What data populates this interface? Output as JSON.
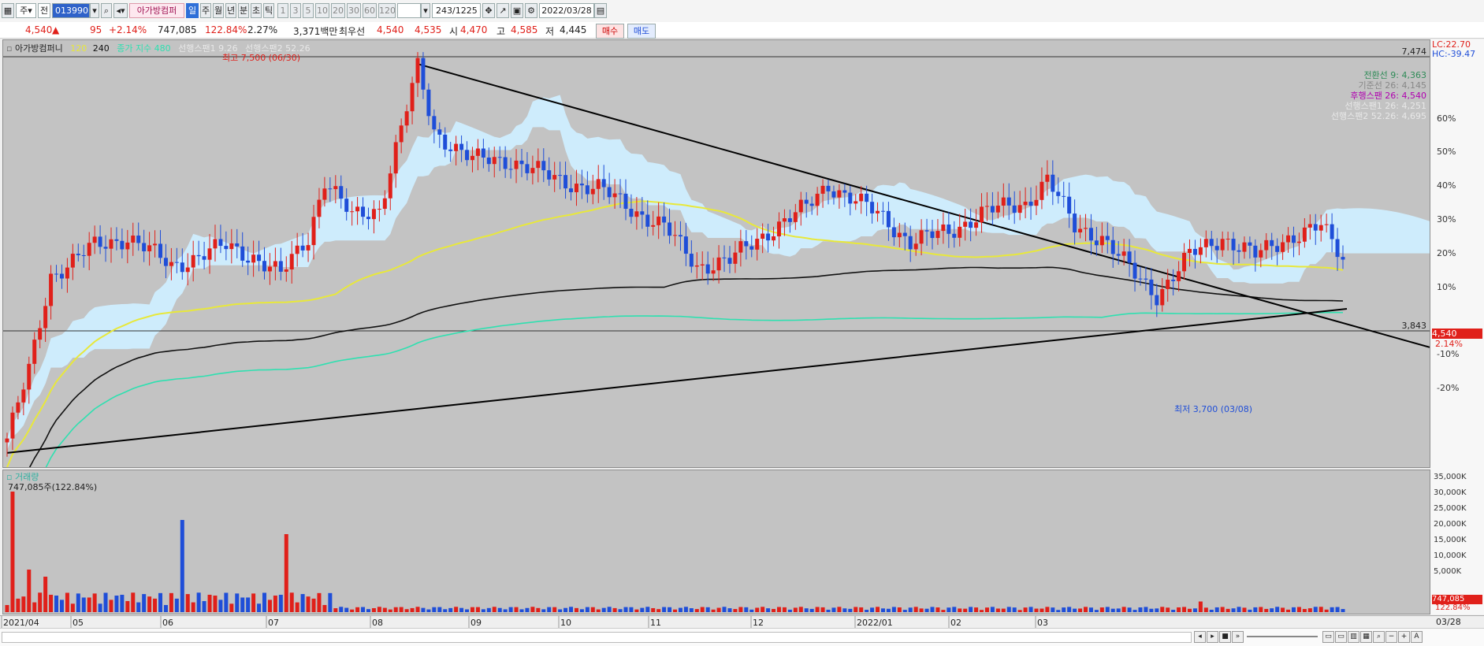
{
  "toolbar": {
    "period_label": "주",
    "mode_label": "전",
    "stock_code": "013990",
    "stock_name": "아가방컴퍼",
    "timeframes": [
      "일",
      "주",
      "월",
      "년",
      "분",
      "초",
      "틱"
    ],
    "active_timeframe": "일",
    "intervals": [
      "1",
      "3",
      "5",
      "10",
      "20",
      "30",
      "60",
      "120"
    ],
    "bar_count": "243",
    "total_count": "/1225",
    "date": "2022/03/28"
  },
  "quote": {
    "price": "4,540",
    "change": "95",
    "change_pct": "+2.14%",
    "volume": "747,085",
    "volume_ratio": "122.84%",
    "turnover": "2.27%",
    "amount": "3,371백만",
    "best_label": "최우선",
    "best_ask": "4,540",
    "best_bid": "4,535",
    "open_label": "시",
    "open": "4,470",
    "high_label": "고",
    "high": "4,585",
    "low_label": "저",
    "low": "4,445",
    "buy_label": "매수",
    "sell_label": "매도"
  },
  "legend": {
    "name": "아가방컴퍼니",
    "ma1": "120",
    "ma2": "240",
    "ichimoku": "종가 지수 480",
    "span1": "선행스팬1 9.26",
    "span2": "선행스팬2 52.26"
  },
  "ichimoku_info": [
    {
      "label": "전환선 9: 4,363",
      "color": "#2e8b57"
    },
    {
      "label": "기준선 26: 4,145",
      "color": "#888888"
    },
    {
      "label": "후행스팬 26: 4,540",
      "color": "#b000b0"
    },
    {
      "label": "선행스팬1 26: 4,251",
      "color": "#e8e8e8"
    },
    {
      "label": "선행스팬2 52.26: 4,695",
      "color": "#e8e8e8"
    }
  ],
  "annotations": {
    "high_label": "최고 7,500 (06/30)",
    "low_label": "최저 3,700 (03/08)",
    "ref_high": "7,474",
    "ref_low": "3,843",
    "lc": "LC:22.70",
    "hc": "HC:-39.47",
    "last_price": "4,540",
    "last_pct": "2.14%"
  },
  "volume_panel": {
    "title": "거래량",
    "current": "747,085주(122.84%)",
    "last_value": "747,085",
    "last_pct": "122.84%"
  },
  "bottom": {
    "corner_date": "03/28"
  },
  "colors": {
    "up": "#e0201a",
    "down": "#1f4ed8",
    "ma120": "#e8e83a",
    "ma240": "#111111",
    "ma480": "#2fe0b0",
    "cloud": "#cfeeff",
    "trend": "#000000",
    "background": "#c3c3c3"
  },
  "chart_data": {
    "type": "candlestick",
    "x_labels": [
      "2021/04",
      "05",
      "06",
      "07",
      "08",
      "09",
      "10",
      "11",
      "12",
      "2022/01",
      "02",
      "03"
    ],
    "y_pct_ticks": [
      "60%",
      "50%",
      "40%",
      "30%",
      "20%",
      "10%",
      "-10%",
      "-20%"
    ],
    "volume_ticks": [
      "35,000K",
      "30,000K",
      "25,000K",
      "20,000K",
      "15,000K",
      "10,000K",
      "5,000K"
    ],
    "price_range": [
      3400,
      7600
    ],
    "volume_range": [
      0,
      36000000
    ],
    "max_price": 7500,
    "min_price": 3700,
    "last_price": 4540
  }
}
